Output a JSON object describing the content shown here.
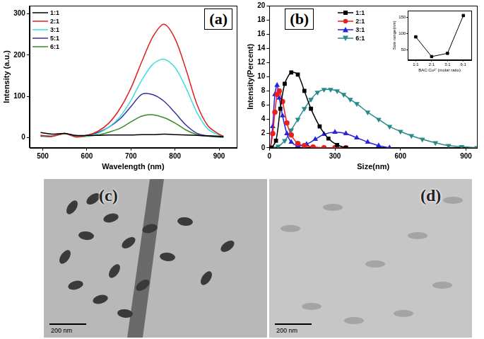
{
  "chart_data": [
    {
      "type": "line",
      "annotation": "(a)",
      "x_label": "Wavelength (nm)",
      "y_label": "Intensity (a.u.)",
      "x": [
        495,
        520,
        550,
        575,
        600,
        625,
        650,
        675,
        700,
        725,
        750,
        775,
        800,
        825,
        850,
        875,
        900,
        910
      ],
      "xlim": [
        470,
        940
      ],
      "xticks": [
        500,
        600,
        700,
        800,
        900
      ],
      "ylim": [
        -25,
        320
      ],
      "yticks": [
        0,
        100,
        200,
        300
      ],
      "grid": false,
      "legend": "upper left",
      "series": [
        {
          "name": "1:1",
          "color": "#000000",
          "values": [
            12,
            8,
            10,
            5,
            5,
            5,
            6,
            6,
            6,
            7,
            7,
            8,
            7,
            6,
            5,
            4,
            3,
            2
          ]
        },
        {
          "name": "2:1",
          "color": "#e02020",
          "values": [
            5,
            3,
            10,
            2,
            5,
            15,
            35,
            70,
            120,
            185,
            245,
            275,
            240,
            165,
            80,
            28,
            8,
            3
          ]
        },
        {
          "name": "3:1",
          "color": "#3fdede",
          "values": [
            5,
            3,
            10,
            2,
            4,
            10,
            25,
            50,
            90,
            140,
            178,
            190,
            170,
            120,
            60,
            20,
            6,
            2
          ]
        },
        {
          "name": "5:1",
          "color": "#32329e",
          "values": [
            4,
            3,
            10,
            2,
            5,
            12,
            25,
            45,
            75,
            105,
            104,
            88,
            60,
            30,
            10,
            4,
            2,
            1
          ]
        },
        {
          "name": "6:1",
          "color": "#3a8a26",
          "values": [
            3,
            2,
            9,
            1,
            3,
            6,
            13,
            22,
            38,
            52,
            55,
            48,
            35,
            18,
            7,
            3,
            1,
            1
          ]
        }
      ]
    },
    {
      "type": "line",
      "annotation": "(b)",
      "x_label": "Size(nm)",
      "y_label": "Intensity(Percent)",
      "xlim": [
        0,
        950
      ],
      "xticks": [
        0,
        300,
        600,
        900
      ],
      "ylim": [
        0,
        20
      ],
      "yticks": [
        0,
        2,
        4,
        6,
        8,
        10,
        12,
        14,
        16,
        18,
        20
      ],
      "grid": false,
      "legend": "upper center",
      "series": [
        {
          "name": "1:1",
          "color": "#000000",
          "marker": "square",
          "x": [
            10,
            30,
            50,
            70,
            100,
            130,
            160,
            190,
            230,
            270,
            310,
            350
          ],
          "values": [
            0,
            1,
            5.5,
            9,
            10.6,
            10.3,
            8,
            5.5,
            3,
            1.3,
            0.4,
            0
          ]
        },
        {
          "name": "2:1",
          "color": "#e8201f",
          "marker": "circle",
          "x": [
            5,
            15,
            25,
            35,
            45,
            60,
            80,
            100,
            130,
            160,
            200,
            250,
            300,
            350
          ],
          "values": [
            0,
            2,
            5,
            7.5,
            8,
            6.5,
            3.5,
            1.8,
            0.6,
            0.3,
            0.1,
            0,
            0,
            0
          ]
        },
        {
          "name": "3:1",
          "color": "#2424e0",
          "marker": "triangle",
          "x": [
            5,
            15,
            25,
            35,
            45,
            60,
            80,
            100,
            130,
            170,
            210,
            250,
            300,
            350,
            400,
            450,
            500,
            550
          ],
          "values": [
            0,
            3,
            7.5,
            8.8,
            7,
            4.5,
            2,
            0.8,
            0.3,
            0.5,
            1.2,
            1.9,
            2.2,
            2,
            1.4,
            0.8,
            0.3,
            0
          ]
        },
        {
          "name": "6:1",
          "color": "#2a8a8a",
          "marker": "triangle_down",
          "x": [
            10,
            40,
            70,
            100,
            130,
            160,
            190,
            220,
            250,
            280,
            310,
            340,
            370,
            400,
            450,
            500,
            550,
            600,
            650,
            700,
            760,
            820,
            880,
            950
          ],
          "values": [
            0,
            0.2,
            1,
            2.5,
            4,
            5.5,
            6.8,
            7.8,
            8.2,
            8.2,
            8,
            7.5,
            6.8,
            6.2,
            5,
            4,
            3,
            2.3,
            1.7,
            1.2,
            0.7,
            0.3,
            0.15,
            0
          ]
        }
      ]
    },
    {
      "type": "line",
      "x_label": "BAC:Cu²⁺ (molar ratio)",
      "y_label": "Size range(nm)",
      "categories": [
        "1:1",
        "2:1",
        "3:1",
        "6:1"
      ],
      "values": [
        90,
        30,
        40,
        155
      ],
      "color": "#000000",
      "marker": "square",
      "ylim": [
        20,
        170
      ],
      "yticks": [
        50,
        100,
        150
      ],
      "grid": false
    }
  ],
  "images": [
    {
      "label": "(c)",
      "scale_bar": "200 nm"
    },
    {
      "label": "(d)",
      "scale_bar": "200 nm"
    }
  ]
}
